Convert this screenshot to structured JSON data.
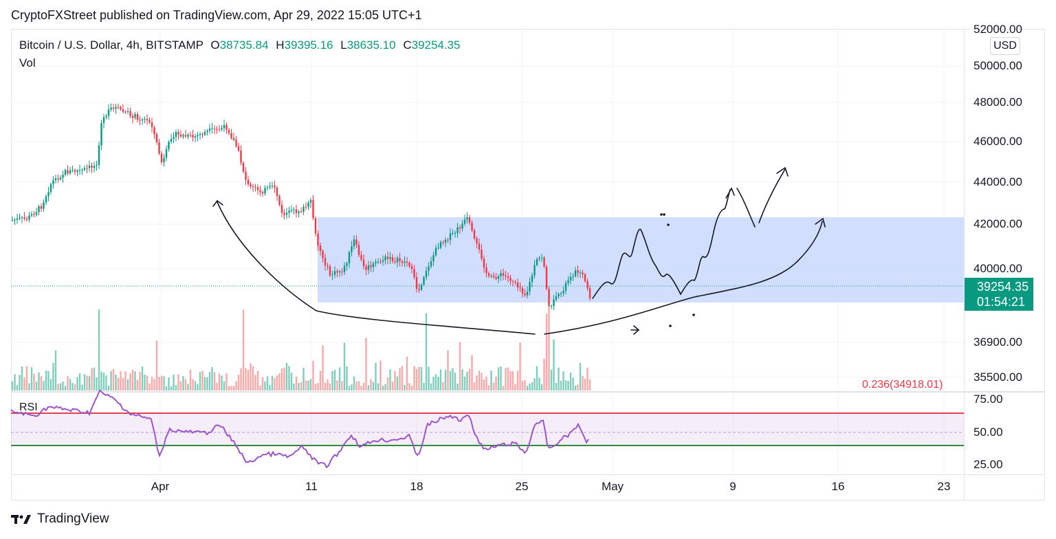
{
  "header": {
    "text": "CryptoFXStreet published on TradingView.com, Apr 29, 2022 15:05 UTC+1"
  },
  "legend": {
    "symbol": "Bitcoin / U.S. Dollar, 4h, BITSTAMP",
    "open_key": "O",
    "open": "38735.84",
    "high_key": "H",
    "high": "39395.16",
    "low_key": "L",
    "low": "38635.10",
    "close_key": "C",
    "close": "39254.35"
  },
  "vol_label": "Vol",
  "rsi_label": "RSI",
  "currency_button": "USD",
  "price_axis": [
    "52000.00",
    "50000.00",
    "48000.00",
    "46000.00",
    "44000.00",
    "42000.00",
    "40000.00",
    "36900.00",
    "35500.00"
  ],
  "rsi_axis": [
    "75.00",
    "50.00",
    "25.00"
  ],
  "last_price": {
    "price": "39254.35",
    "countdown": "01:54:21"
  },
  "fib_label": "0.236(34918.01)",
  "time_axis": [
    "Apr",
    "11",
    "18",
    "25",
    "May",
    "9",
    "16",
    "23"
  ],
  "colors": {
    "up": "#089981",
    "down": "#f23645",
    "zone": "#c9d8fd",
    "rsi": "#9c54c8",
    "upper_band": "#e0404f",
    "lower_band": "#2e8b3a"
  },
  "footer": {
    "brand": "TradingView"
  }
}
